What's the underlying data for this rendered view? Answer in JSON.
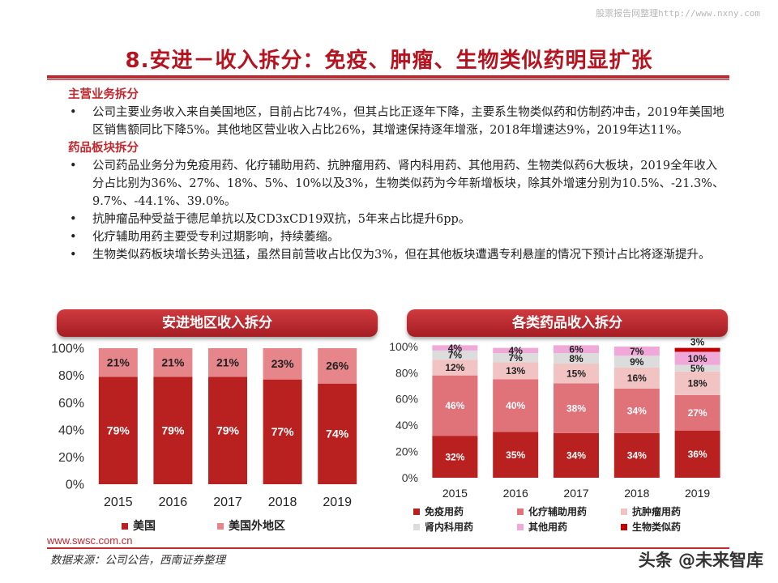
{
  "watermark": "股票报告网整理http://www.nxny.com",
  "page_title": "8.安进－收入拆分：免疫、肿瘤、生物类似药明显扩张",
  "sections": [
    {
      "heading": "主营业务拆分",
      "bullets": [
        "公司主要业务收入来自美国地区，目前占比74%，但其占比正逐年下降，主要系生物类似药和仿制药冲击，2019年美国地区销售额同比下降5%。其他地区营业收入占比26%，其增速保持逐年增涨，2018年增速达9%，2019年达11%。"
      ]
    },
    {
      "heading": "药品板块拆分",
      "bullets": [
        "公司药品业务分为免疫用药、化疗辅助用药、抗肿瘤用药、肾内科用药、其他用药、生物类似药6大板块，2019全年收入分占比别为36%、27%、18%、5%、10%以及3%，生物类似药为今年新增板块，除其外增速分别为10.5%、-21.3%、9.7%、-44.1%、39.0%。",
        "抗肿瘤品种受益于德尼单抗以及CD3xCD19双抗，5年来占比提升6pp。",
        "化疗辅助用药主要受专利过期影响，持续萎缩。",
        "生物类似药板块增长势头迅猛，虽然目前营收占比仅为3%，但在其他板块遭遇专利悬崖的情况下预计占比将逐渐提升。"
      ]
    }
  ],
  "chart_data": [
    {
      "type": "bar",
      "stacked": true,
      "title": "安进地区收入拆分",
      "categories": [
        "2015",
        "2016",
        "2017",
        "2018",
        "2019"
      ],
      "series": [
        {
          "name": "美国",
          "values": [
            79,
            79,
            79,
            77,
            74
          ],
          "color": "#b8211f",
          "labels": [
            "79%",
            "79%",
            "79%",
            "77%",
            "74%"
          ]
        },
        {
          "name": "美国外地区",
          "values": [
            21,
            21,
            21,
            23,
            26
          ],
          "color": "#e6858a",
          "labels": [
            "21%",
            "21%",
            "21%",
            "23%",
            "26%"
          ]
        }
      ],
      "yticks": [
        "0%",
        "20%",
        "40%",
        "60%",
        "80%",
        "100%"
      ],
      "ylim": [
        0,
        100
      ],
      "legend_position": "bottom"
    },
    {
      "type": "bar",
      "stacked": true,
      "title": "各类药品收入拆分",
      "categories": [
        "2015",
        "2016",
        "2017",
        "2018",
        "2019"
      ],
      "series": [
        {
          "name": "免疫用药",
          "values": [
            32,
            35,
            34,
            34,
            36
          ],
          "color": "#b8211f",
          "labels": [
            "32%",
            "35%",
            "34%",
            "34%",
            "36%"
          ]
        },
        {
          "name": "化疗辅助用药",
          "values": [
            46,
            40,
            38,
            34,
            27
          ],
          "color": "#e0727a",
          "labels": [
            "46%",
            "40%",
            "38%",
            "34%",
            "27%"
          ]
        },
        {
          "name": "抗肿瘤用药",
          "values": [
            12,
            13,
            15,
            16,
            18
          ],
          "color": "#f2c3c3",
          "labels": [
            "12%",
            "13%",
            "15%",
            "16%",
            "18%"
          ]
        },
        {
          "name": "肾内科用药",
          "values": [
            7,
            7,
            8,
            9,
            5
          ],
          "color": "#dcdcdc",
          "labels": [
            "7%",
            "7%",
            "8%",
            "9%",
            "5%"
          ]
        },
        {
          "name": "其他用药",
          "values": [
            4,
            4,
            6,
            7,
            10
          ],
          "color": "#f0a8d8",
          "labels": [
            "4%",
            "4%",
            "6%",
            "7%",
            "10%"
          ]
        },
        {
          "name": "生物类似药",
          "values": [
            0,
            0,
            0,
            0,
            3
          ],
          "color": "#c00000",
          "labels": [
            "",
            "",
            "",
            "",
            "3%"
          ]
        }
      ],
      "yticks": [
        "0%",
        "20%",
        "40%",
        "60%",
        "80%",
        "100%"
      ],
      "ylim": [
        0,
        100
      ],
      "legend_position": "bottom"
    }
  ],
  "footer": {
    "url": "www.swsc.com.cn",
    "source": "数据来源：公司公告，西南证券整理",
    "brand": "头条 @未来智库"
  }
}
